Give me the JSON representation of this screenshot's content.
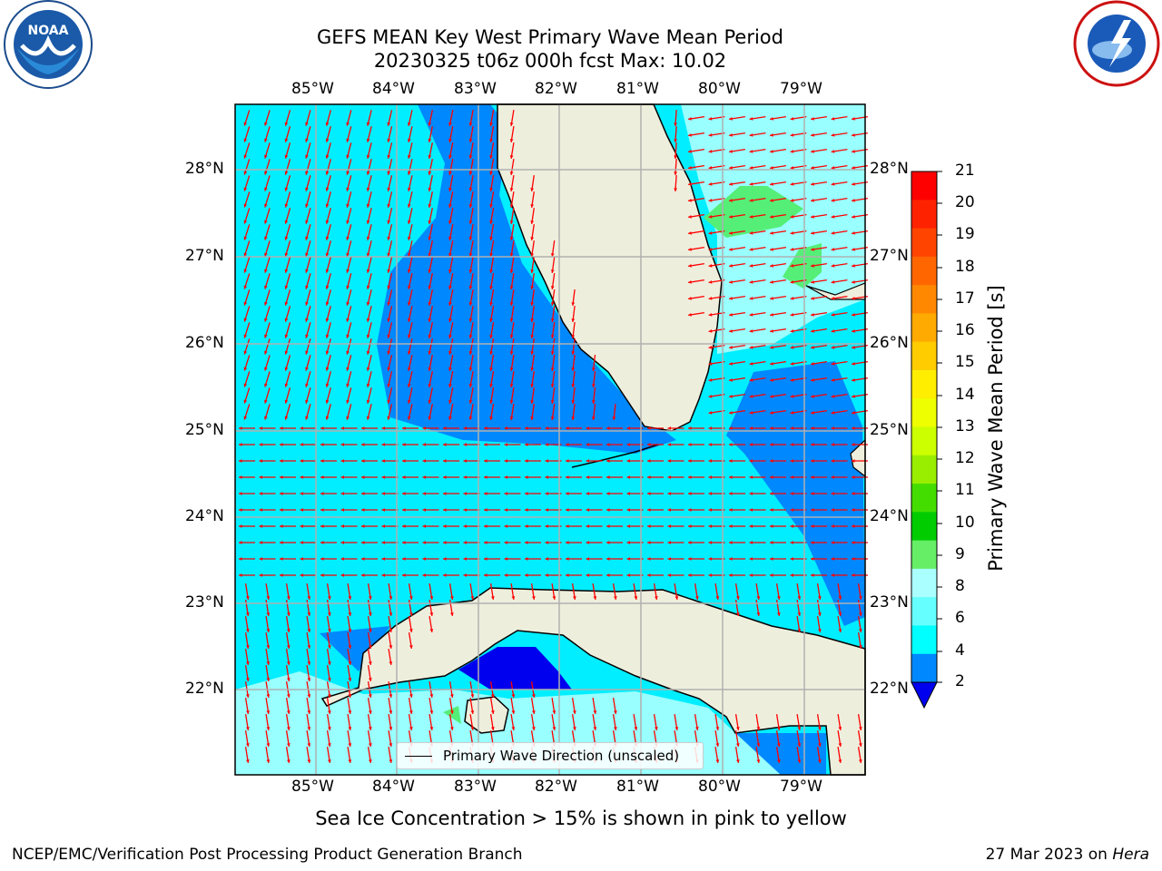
{
  "header": {
    "title_line1": "GEFS MEAN Key West Primary Wave Mean Period",
    "title_line2": "20230325 t06z 000h fcst   Max: 10.02"
  },
  "logos": {
    "noaa_text": "NOAA",
    "nws_text": "NATIONAL WEATHER SERVICE"
  },
  "axes": {
    "lon_labels": [
      "85°W",
      "84°W",
      "83°W",
      "82°W",
      "81°W",
      "80°W",
      "79°W"
    ],
    "lat_labels": [
      "28°N",
      "27°N",
      "26°N",
      "25°N",
      "24°N",
      "23°N",
      "22°N"
    ]
  },
  "colorbar": {
    "title": "Primary Wave Mean Period [s]",
    "ticks": [
      "21",
      "20",
      "19",
      "18",
      "17",
      "16",
      "15",
      "14",
      "13",
      "12",
      "11",
      "10",
      "9",
      "8",
      "6",
      "4",
      "2"
    ],
    "colors": [
      "#ff0000",
      "#ff2200",
      "#ff4400",
      "#ff6600",
      "#ff8800",
      "#ffaa00",
      "#ffcc00",
      "#ffee00",
      "#eeff00",
      "#ccff00",
      "#99ee00",
      "#44dd00",
      "#00cc00",
      "#66ee66",
      "#aaffff",
      "#66ffff",
      "#00ffff",
      "#0088ff",
      "#0000ee"
    ]
  },
  "legend": {
    "label": "Primary Wave Direction (unscaled)"
  },
  "note": "Sea Ice Concentration > 15% is shown in pink to yellow",
  "footer": {
    "left": "NCEP/EMC/Verification Post Processing Product Generation Branch",
    "right_date": "27 Mar 2023 on",
    "right_host": "Hera"
  },
  "palette": {
    "land": "#eeeedd",
    "water_cyan": "#00eeff",
    "water_blue": "#0088ff",
    "water_dark": "#0000ee",
    "water_light": "#99ffff",
    "water_green": "#55ee77",
    "arrow": "#ff0000",
    "grid": "#b0b0b0"
  }
}
